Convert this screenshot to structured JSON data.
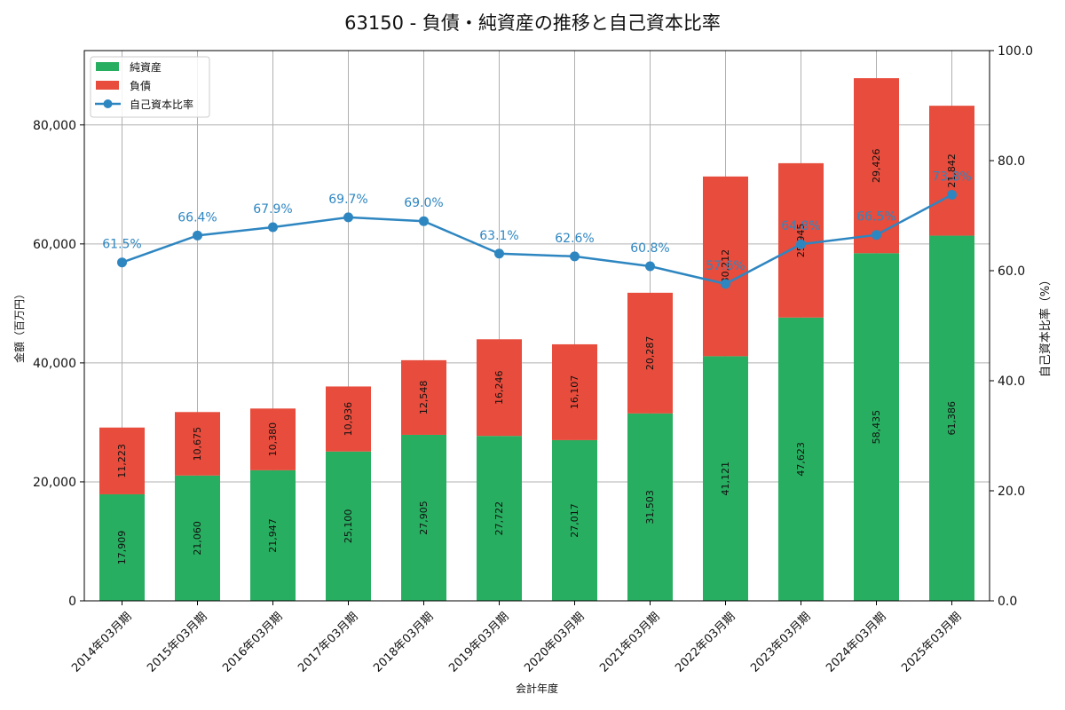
{
  "chart_data": {
    "type": "bar",
    "title": "63150 - 負債・純資産の推移と自己資本比率",
    "xlabel": "会計年度",
    "ylabel": "金額（百万円）",
    "y2label": "自己資本比率（%）",
    "categories": [
      "2014年03月期",
      "2015年03月期",
      "2016年03月期",
      "2017年03月期",
      "2018年03月期",
      "2019年03月期",
      "2020年03月期",
      "2021年03月期",
      "2022年03月期",
      "2023年03月期",
      "2024年03月期",
      "2025年03月期"
    ],
    "series": [
      {
        "name": "純資産",
        "kind": "bar",
        "stack": "main",
        "color": "#27ae60",
        "values": [
          17909,
          21060,
          21947,
          25100,
          27905,
          27722,
          27017,
          31503,
          41121,
          47623,
          58435,
          61386
        ],
        "labels": [
          "17,909",
          "21,060",
          "21,947",
          "25,100",
          "27,905",
          "27,722",
          "27,017",
          "31,503",
          "41,121",
          "47,623",
          "58,435",
          "61,386"
        ]
      },
      {
        "name": "負債",
        "kind": "bar",
        "stack": "main",
        "color": "#e74c3c",
        "values": [
          11223,
          10675,
          10380,
          10936,
          12548,
          16246,
          16107,
          20287,
          30212,
          25945,
          29426,
          21842
        ],
        "labels": [
          "11,223",
          "10,675",
          "10,380",
          "10,936",
          "12,548",
          "16,246",
          "16,107",
          "20,287",
          "30,212",
          "25,945",
          "29,426",
          "21,842"
        ]
      },
      {
        "name": "自己資本比率",
        "kind": "line",
        "axis": "right",
        "color": "#2e86c1",
        "values": [
          61.5,
          66.4,
          67.9,
          69.7,
          69.0,
          63.1,
          62.6,
          60.8,
          57.6,
          64.8,
          66.5,
          73.8
        ],
        "labels": [
          "61.5%",
          "66.4%",
          "67.9%",
          "69.7%",
          "69.0%",
          "63.1%",
          "62.6%",
          "60.8%",
          "57.6%",
          "64.8%",
          "66.5%",
          "73.8%"
        ]
      }
    ],
    "ylim": [
      0,
      92500
    ],
    "y2lim": [
      0,
      100
    ],
    "yticks": [
      0,
      20000,
      40000,
      60000,
      80000
    ],
    "ytick_labels": [
      "0",
      "20,000",
      "40,000",
      "60,000",
      "80,000"
    ],
    "y2ticks": [
      0,
      20,
      40,
      60,
      80,
      100
    ],
    "y2tick_labels": [
      "0.0",
      "20.0",
      "40.0",
      "60.0",
      "80.0",
      "100.0"
    ],
    "grid": true,
    "legend_position": "top-left"
  }
}
